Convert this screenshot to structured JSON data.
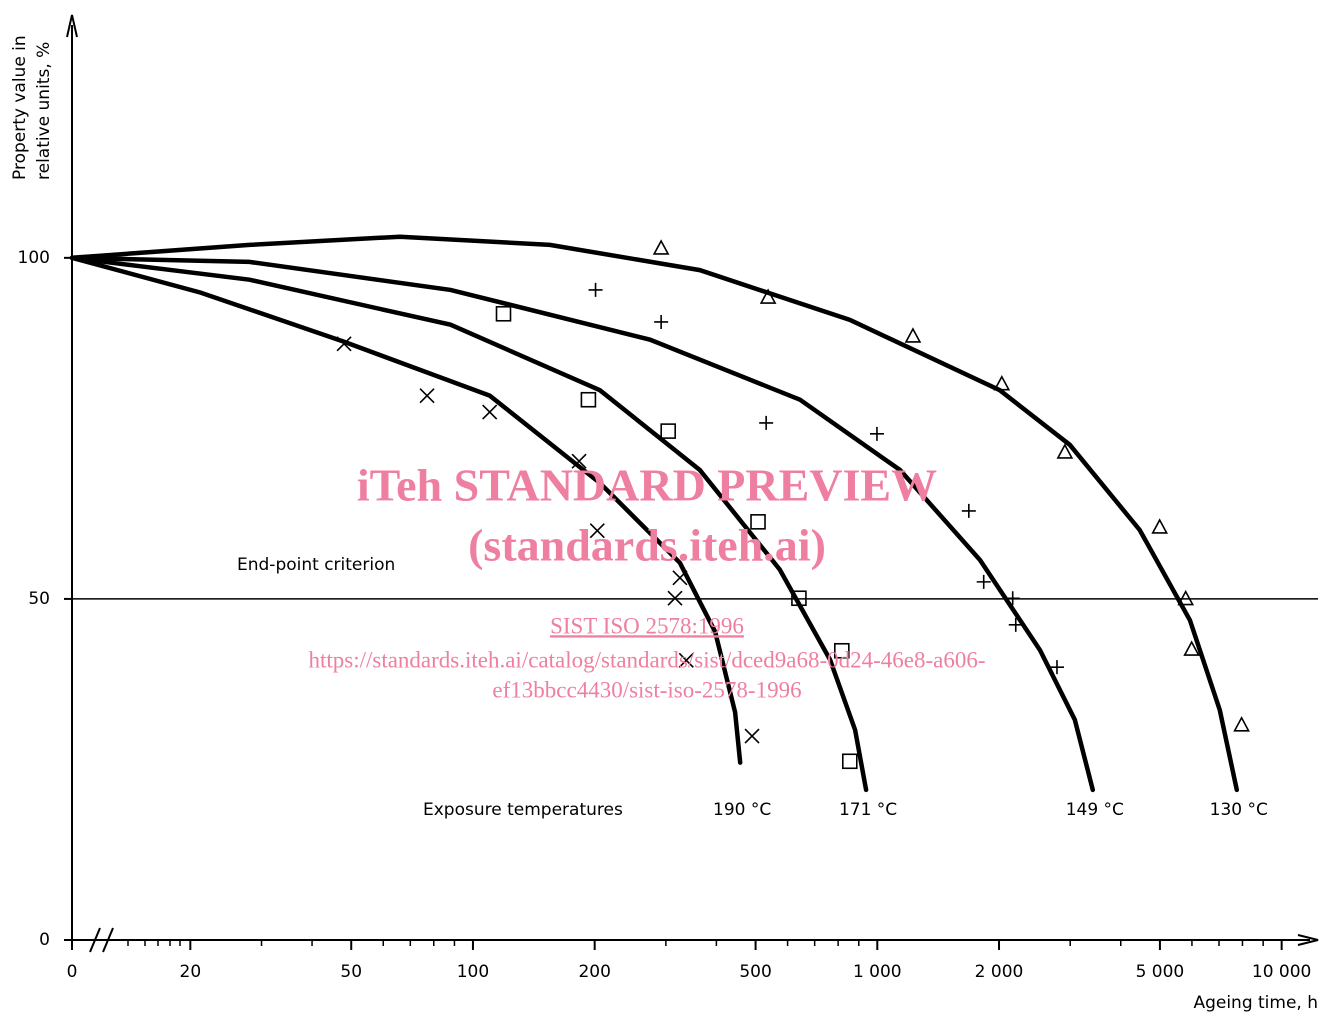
{
  "chart_data": {
    "type": "scatter",
    "y_label_lines": [
      "Property value in",
      "relative units, %"
    ],
    "x_label": "Ageing time, h",
    "x_log": true,
    "x_break": true,
    "xlim": [
      13.4,
      12300
    ],
    "ylim": [
      0,
      135.6
    ],
    "xticks": [
      0,
      20,
      50,
      100,
      200,
      500,
      {
        "value": 1000,
        "label": "1 000"
      },
      {
        "value": 2000,
        "label": "2 000"
      },
      {
        "value": 5000,
        "label": "5 000"
      },
      {
        "value": 10000,
        "label": "10 000"
      }
    ],
    "xminorticks": [
      30,
      40,
      60,
      70,
      80,
      90,
      300,
      400,
      600,
      700,
      800,
      900,
      3000,
      4000,
      6000,
      7000,
      8000,
      9000
    ],
    "yticks": [
      0,
      50,
      100
    ],
    "criterion": {
      "label": "End-point criterion",
      "value": 50
    },
    "series_caption": "Exposure temperatures",
    "series": [
      {
        "name": "190 °C",
        "marker": "x",
        "color": "#000000",
        "x": [
          48,
          77,
          110,
          183,
          203,
          325,
          316,
          337,
          490
        ],
        "y": [
          87.4,
          79.8,
          77.4,
          70.2,
          60,
          53.1,
          50.1,
          41,
          29.9
        ],
        "curve_x": [
          0,
          21.2,
          48,
          110,
          206,
          325,
          397,
          445,
          458
        ],
        "curve_y": [
          100,
          94.9,
          87.7,
          79.8,
          67.0,
          55.3,
          45.2,
          33.4,
          26.0
        ]
      },
      {
        "name": "171 °C",
        "marker": "square",
        "color": "#000000",
        "x": [
          119,
          193,
          304,
          507,
          640,
          817,
          855
        ],
        "y": [
          91.8,
          79.2,
          74.6,
          61.3,
          50.1,
          42.4,
          26.2
        ],
        "curve_x": [
          0,
          28,
          88,
          206,
          364,
          574,
          764,
          881,
          938
        ],
        "curve_y": [
          100,
          96.8,
          90.2,
          80.6,
          68.9,
          54.3,
          41.1,
          30.8,
          22.0
        ]
      },
      {
        "name": "149 °C",
        "marker": "plus",
        "color": "#000000",
        "x": [
          201,
          292,
          531,
          998,
          1684,
          1833,
          2162,
          2200,
          2782
        ],
        "y": [
          95.3,
          90.6,
          75.8,
          74.2,
          62.9,
          52.5,
          50.1,
          46.2,
          40
        ],
        "curve_x": [
          0,
          28,
          88,
          274,
          644,
          1138,
          1795,
          2525,
          3080,
          3412
        ],
        "curve_y": [
          100,
          99.4,
          95.3,
          88.0,
          79.2,
          68.9,
          55.7,
          42.5,
          32.3,
          22.0
        ]
      },
      {
        "name": "130 °C",
        "marker": "triangle",
        "color": "#000000",
        "x": [
          292,
          537,
          1225,
          2032,
          2910,
          4993,
          5790,
          5990,
          7960
        ],
        "y": [
          101.3,
          94.1,
          88.4,
          81.4,
          71.4,
          60.4,
          49.9,
          42.5,
          31.4
        ],
        "curve_x": [
          0,
          28,
          66,
          155,
          364,
          855,
          2009,
          2992,
          4457,
          5929,
          7031,
          7745
        ],
        "curve_y": [
          100,
          101.9,
          103.1,
          101.9,
          98.2,
          90.9,
          80.6,
          72.6,
          60.1,
          46.9,
          33.7,
          22.0
        ]
      }
    ],
    "watermark": {
      "title": "iTeh STANDARD PREVIEW",
      "subtitle": "(standards.iteh.ai)",
      "code": "SIST ISO 2578:1996",
      "url_lines": [
        "https://standards.iteh.ai/catalog/standards/sist/dced9a68-0d24-46e8-a606-",
        "ef13bbcc4430/sist-iso-2578-1996"
      ]
    }
  }
}
